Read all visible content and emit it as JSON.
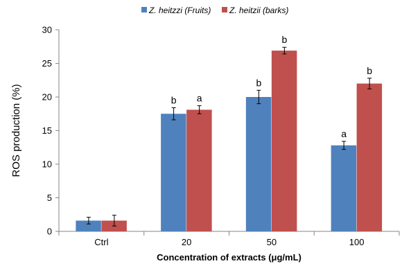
{
  "chart_data": {
    "type": "bar",
    "title": "",
    "xlabel": "Concentration of extracts (μg/mL)",
    "ylabel": "ROS  production (%)",
    "categories": [
      "Ctrl",
      "20",
      "50",
      "100"
    ],
    "ylim": [
      0,
      30
    ],
    "yticks": [
      0,
      5,
      10,
      15,
      20,
      25,
      30
    ],
    "grid": false,
    "legend_position": "top-center",
    "series": [
      {
        "name": "Z. heitzzi (Fruits)",
        "color": "#4F81BD",
        "values": [
          1.6,
          17.5,
          20.0,
          12.8
        ],
        "errors": [
          0.5,
          0.9,
          1.0,
          0.6
        ],
        "labels": [
          "",
          "b",
          "b",
          "a"
        ]
      },
      {
        "name": "Z. heitzii (barks)",
        "color": "#C0504D",
        "values": [
          1.6,
          18.1,
          26.9,
          22.0
        ],
        "errors": [
          0.8,
          0.6,
          0.5,
          0.8
        ],
        "labels": [
          "",
          "a",
          "b",
          "b"
        ]
      }
    ]
  }
}
